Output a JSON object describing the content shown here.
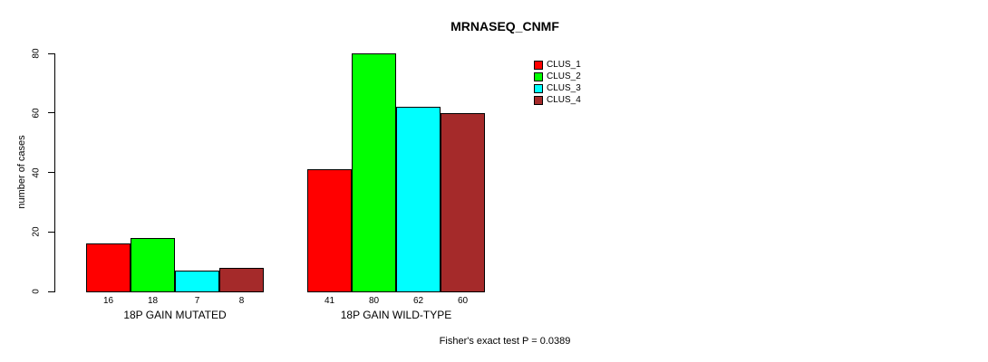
{
  "chart_data": {
    "type": "bar",
    "title": "MRNASEQ_CNMF",
    "ylabel": "number of cases",
    "ylim": [
      0,
      80
    ],
    "yticks": [
      0,
      20,
      40,
      60,
      80
    ],
    "categories": [
      "18P GAIN MUTATED",
      "18P GAIN WILD-TYPE"
    ],
    "series": [
      {
        "name": "CLUS_1",
        "color": "#FF0000",
        "values": [
          16,
          41
        ]
      },
      {
        "name": "CLUS_2",
        "color": "#00FF00",
        "values": [
          18,
          80
        ]
      },
      {
        "name": "CLUS_3",
        "color": "#00FFFF",
        "values": [
          7,
          62
        ]
      },
      {
        "name": "CLUS_4",
        "color": "#A52A2A",
        "values": [
          8,
          60
        ]
      }
    ],
    "legend_position": "top-right",
    "bar_value_labels_shown": true,
    "grid": false,
    "annotation": "Fisher's exact test P = 0.0389"
  }
}
